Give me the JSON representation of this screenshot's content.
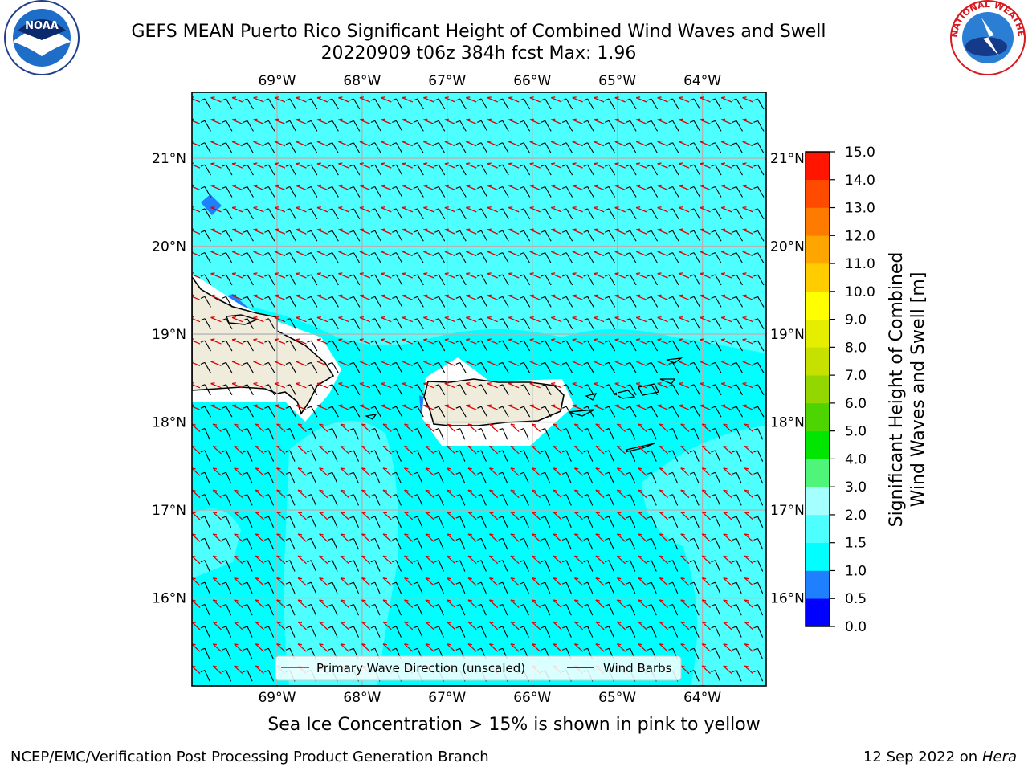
{
  "title_line1": "GEFS MEAN Puerto Rico Significant Height of Combined Wind Waves and Swell",
  "title_line2": "20220909 t06z 384h fcst   Max: 1.96",
  "ice_note": "Sea Ice Concentration > 15% is shown in pink to yellow",
  "credit": "NCEP/EMC/Verification Post Processing Product Generation Branch",
  "date_stamp": "12 Sep 2022 on",
  "host": "Hera",
  "logos": {
    "left": "noaa-logo",
    "right": "nws-logo",
    "noaa_text": "NOAA",
    "nws_text": "NATIONAL WEATHER SERVICE"
  },
  "legend": {
    "wave_dir": "Primary Wave Direction (unscaled)",
    "wind_barbs": "Wind Barbs"
  },
  "colorbar": {
    "label_line1": "Significant Height of Combined",
    "label_line2": "Wind Waves and Swell [m]",
    "levels": [
      0.0,
      0.5,
      1.0,
      1.5,
      2.0,
      3.0,
      4.0,
      5.0,
      6.0,
      7.0,
      8.0,
      9.0,
      10.0,
      11.0,
      12.0,
      13.0,
      14.0,
      15.0
    ],
    "tick_labels": [
      "0.0",
      "0.5",
      "1.0",
      "1.5",
      "2.0",
      "3.0",
      "4.0",
      "5.0",
      "6.0",
      "7.0",
      "8.0",
      "9.0",
      "10.0",
      "11.0",
      "12.0",
      "13.0",
      "14.0",
      "15.0"
    ],
    "colors": [
      "#0000ff",
      "#1e7fff",
      "#00ffff",
      "#4dffff",
      "#a6ffff",
      "#4ff57a",
      "#00e600",
      "#4ed400",
      "#94d700",
      "#c6e000",
      "#e6ee00",
      "#ffff00",
      "#ffcc00",
      "#ffa500",
      "#ff7b00",
      "#ff4b00",
      "#ff1500"
    ]
  },
  "chart_data": {
    "type": "map",
    "lon_range": [
      -70.0,
      -63.25
    ],
    "lat_range": [
      15.0,
      21.75
    ],
    "lon_ticks": [
      -69,
      -68,
      -67,
      -66,
      -65,
      -64
    ],
    "lon_tick_labels": [
      "69°W",
      "68°W",
      "67°W",
      "66°W",
      "65°W",
      "64°W"
    ],
    "lat_ticks": [
      16,
      17,
      18,
      19,
      20,
      21
    ],
    "lat_tick_labels": [
      "16°N",
      "17°N",
      "18°N",
      "19°N",
      "20°N",
      "21°N"
    ],
    "max_value": 1.96,
    "background_level": "1.0-1.5 m",
    "grid": true,
    "legend_placement": "bottom-center"
  }
}
